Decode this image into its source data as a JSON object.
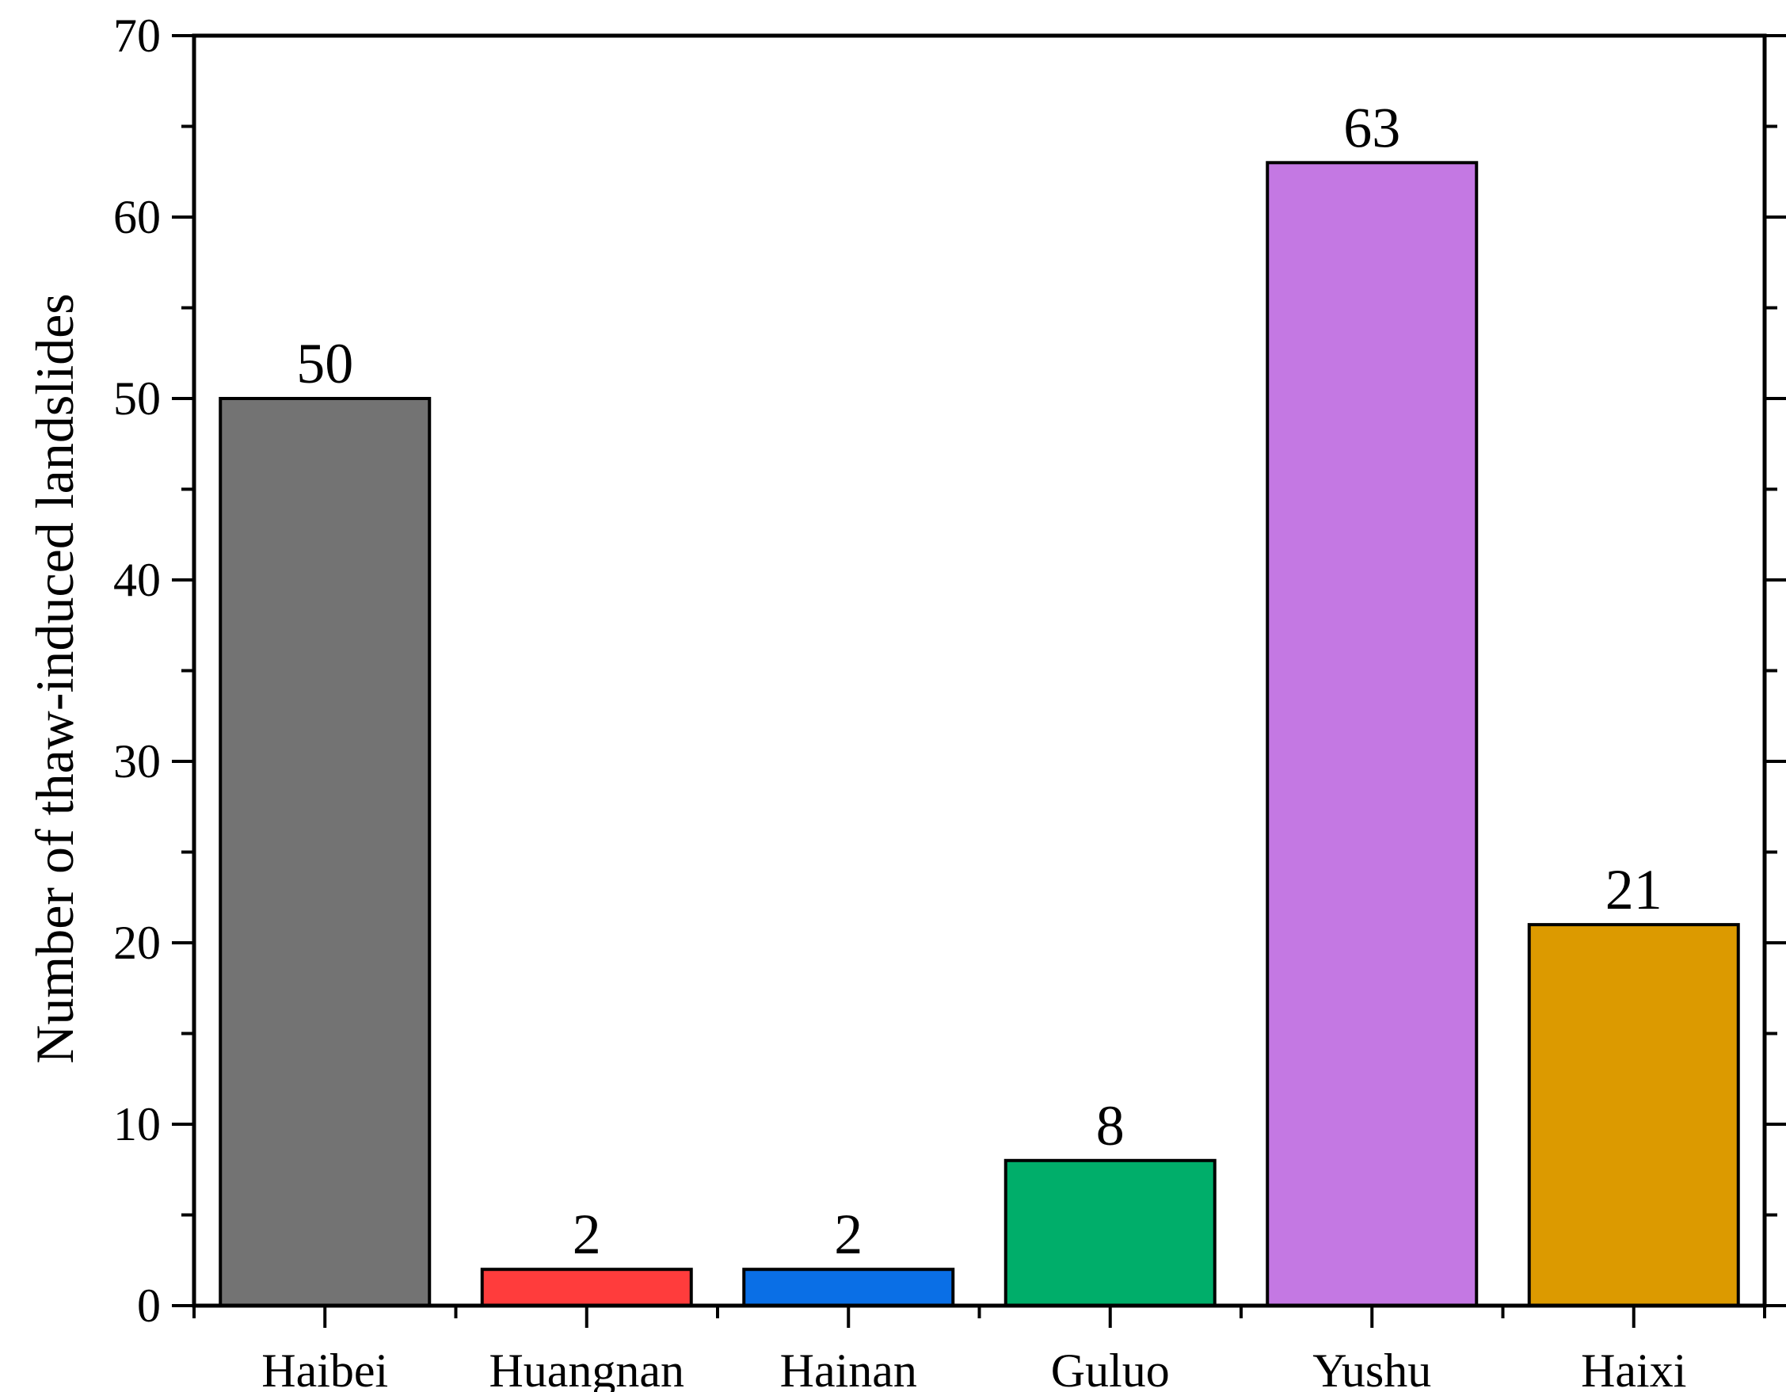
{
  "chart_data": {
    "type": "bar",
    "title": "",
    "xlabel": "",
    "ylabel": "Number  of thaw-induced landslides",
    "categories": [
      "Haibei",
      "Huangnan",
      "Hainan",
      "Guluo",
      "Yushu",
      "Haixi"
    ],
    "values": [
      50,
      2,
      2,
      8,
      63,
      21
    ],
    "data_labels": [
      "50",
      "2",
      "2",
      "8",
      "63",
      "21"
    ],
    "colors": [
      "#737373",
      "#ff3c3c",
      "#0a6fe6",
      "#00ae6a",
      "#c478e3",
      "#dc9a00"
    ],
    "ylim": [
      0,
      70
    ],
    "yticks": [
      0,
      10,
      20,
      30,
      40,
      50,
      60,
      70
    ],
    "ytick_labels": [
      "0",
      "10",
      "20",
      "30",
      "40",
      "50",
      "60",
      "70"
    ],
    "grid": false,
    "legend": "none"
  }
}
